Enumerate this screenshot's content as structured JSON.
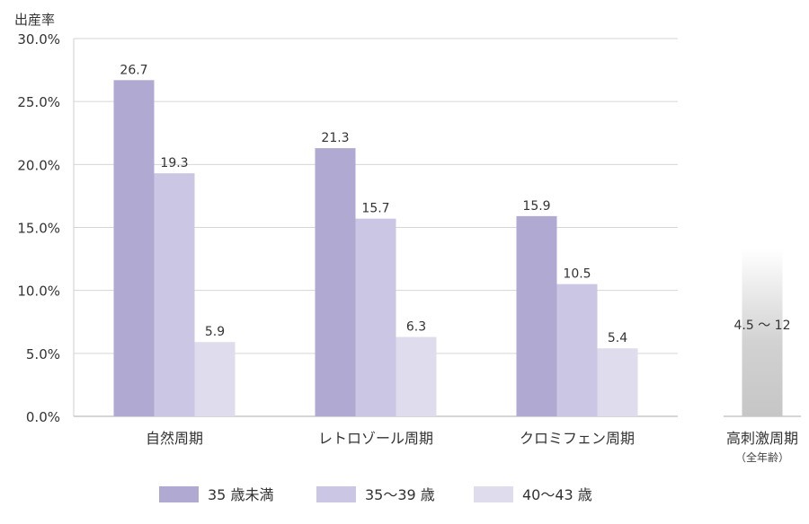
{
  "chart_data": {
    "type": "bar",
    "ylabel": "出産率",
    "ylim": [
      0,
      30
    ],
    "yticks": [
      "0.0%",
      "5.0%",
      "10.0%",
      "15.0%",
      "20.0%",
      "25.0%",
      "30.0%"
    ],
    "grid": true,
    "legend_position": "bottom",
    "categories": [
      "自然周期",
      "レトロゾール周期",
      "クロミフェン周期"
    ],
    "series": [
      {
        "name": "35 歳未満",
        "color": "#b0aad3",
        "values": [
          26.7,
          21.3,
          15.9
        ]
      },
      {
        "name": "35〜39 歳",
        "color": "#cbc6e3",
        "values": [
          19.3,
          15.7,
          10.5
        ]
      },
      {
        "name": "40〜43 歳",
        "color": "#dedced",
        "values": [
          5.9,
          6.3,
          5.4
        ]
      }
    ],
    "extra_category": {
      "label": "高刺激周期",
      "sublabel": "（全年齢）",
      "range_label": "4.5 〜 12",
      "range": [
        4.5,
        12
      ],
      "color": "#c8c8c8"
    }
  }
}
